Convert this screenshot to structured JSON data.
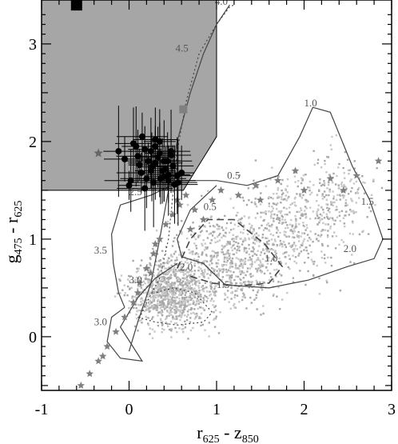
{
  "chart_data": {
    "type": "scatter",
    "title": "",
    "xlabel": {
      "main": "r",
      "sub1": "625",
      "mid": " - z",
      "sub2": "850"
    },
    "ylabel": {
      "main": "g",
      "sub1": "475",
      "mid": " - r",
      "sub2": "625"
    },
    "xlim": [
      -1,
      3
    ],
    "ylim": [
      -0.55,
      3.45
    ],
    "x_ticks": [
      -1,
      0,
      1,
      2,
      3
    ],
    "y_ticks": [
      0,
      1,
      2,
      3
    ],
    "grid": false,
    "shaded_region": {
      "color": "#a6a6a6",
      "vertices": [
        [
          -1,
          3.45
        ],
        [
          1.0,
          3.45
        ],
        [
          1.0,
          2.05
        ],
        [
          0.62,
          1.5
        ],
        [
          -1,
          1.5
        ]
      ]
    },
    "highlight_square": {
      "x": -0.6,
      "y": 3.4
    },
    "gray_square": {
      "x": 0.62,
      "y": 2.33
    },
    "galaxy_star": {
      "x": -0.35,
      "y": 1.88
    },
    "labeled_curves": [
      {
        "name": "solid-outer",
        "style": "solid",
        "points": [
          [
            -0.05,
            0.3
          ],
          [
            -0.12,
            0.45
          ],
          [
            -0.18,
            0.75
          ],
          [
            -0.2,
            1.05
          ],
          [
            -0.1,
            1.35
          ],
          [
            0.25,
            1.45
          ],
          [
            0.6,
            1.6
          ],
          [
            1.0,
            1.6
          ],
          [
            1.35,
            1.55
          ],
          [
            1.7,
            1.65
          ],
          [
            1.95,
            2.05
          ],
          [
            2.1,
            2.35
          ],
          [
            2.3,
            2.3
          ],
          [
            2.55,
            1.75
          ],
          [
            2.75,
            1.4
          ],
          [
            2.9,
            1.0
          ],
          [
            2.8,
            0.8
          ],
          [
            2.5,
            0.72
          ],
          [
            2.05,
            0.58
          ],
          [
            1.6,
            0.5
          ],
          [
            1.1,
            0.53
          ],
          [
            0.85,
            0.75
          ],
          [
            0.6,
            0.82
          ],
          [
            0.55,
            1.0
          ],
          [
            0.7,
            1.3
          ],
          [
            1.0,
            1.55
          ]
        ],
        "labels": [
          {
            "text": "1.0",
            "x": 2.0,
            "y": 2.36
          },
          {
            "text": "1.5",
            "x": 2.65,
            "y": 1.35
          },
          {
            "text": "2.0",
            "x": 2.45,
            "y": 0.87
          },
          {
            "text": "0.5",
            "x": 1.12,
            "y": 1.62
          },
          {
            "text": "1.5",
            "x": 1.0,
            "y": 0.5
          },
          {
            "text": "2.0",
            "x": 0.58,
            "y": 0.68
          }
        ]
      },
      {
        "name": "dashed-loop",
        "style": "dashed",
        "points": [
          [
            0.55,
            0.7
          ],
          [
            0.7,
            1.0
          ],
          [
            0.9,
            1.2
          ],
          [
            1.2,
            1.2
          ],
          [
            1.55,
            0.95
          ],
          [
            1.75,
            0.72
          ],
          [
            1.6,
            0.55
          ],
          [
            1.25,
            0.52
          ],
          [
            0.95,
            0.55
          ],
          [
            0.7,
            0.62
          ]
        ],
        "labels": [
          {
            "text": "1.0",
            "x": 1.55,
            "y": 0.77
          },
          {
            "text": "0.5",
            "x": 0.85,
            "y": 1.3
          }
        ]
      },
      {
        "name": "dotted-track",
        "style": "dotted",
        "points": [
          [
            0.1,
            0.15
          ],
          [
            0.2,
            0.35
          ],
          [
            0.35,
            0.6
          ],
          [
            0.45,
            1.0
          ],
          [
            0.5,
            1.45
          ],
          [
            0.55,
            1.9
          ],
          [
            0.65,
            2.4
          ],
          [
            0.8,
            2.9
          ],
          [
            1.0,
            3.2
          ],
          [
            1.15,
            3.38
          ],
          [
            1.2,
            3.4
          ]
        ],
        "labels": []
      },
      {
        "name": "solid-track",
        "style": "solid",
        "points": [
          [
            0.0,
            -0.15
          ],
          [
            0.1,
            0.15
          ],
          [
            0.25,
            0.55
          ],
          [
            0.35,
            1.0
          ],
          [
            0.45,
            1.5
          ],
          [
            0.55,
            2.0
          ],
          [
            0.7,
            2.5
          ],
          [
            0.85,
            2.9
          ],
          [
            1.0,
            3.2
          ],
          [
            1.15,
            3.4
          ]
        ],
        "labels": [
          {
            "text": "4.5",
            "x": 0.53,
            "y": 2.92
          },
          {
            "text": "4.0",
            "x": 0.98,
            "y": 3.4
          },
          {
            "text": "3.5",
            "x": -0.4,
            "y": 0.85
          },
          {
            "text": "3.0",
            "x": -0.4,
            "y": 0.12
          },
          {
            "text": "3.0",
            "x": 0.0,
            "y": 0.55
          },
          {
            "text": "2.5",
            "x": 0.0,
            "y": 1.45
          }
        ]
      },
      {
        "name": "solid-lower",
        "style": "solid",
        "points": [
          [
            -0.05,
            0.3
          ],
          [
            -0.2,
            0.2
          ],
          [
            -0.25,
            -0.05
          ],
          [
            -0.1,
            -0.22
          ],
          [
            0.15,
            -0.25
          ],
          [
            -0.1,
            0.1
          ],
          [
            0.1,
            0.4
          ],
          [
            0.3,
            0.6
          ],
          [
            0.55,
            0.75
          ]
        ],
        "labels": []
      },
      {
        "name": "dotted-inner",
        "style": "dotted",
        "points": [
          [
            0.1,
            0.2
          ],
          [
            0.3,
            0.15
          ],
          [
            0.55,
            0.12
          ],
          [
            0.85,
            0.15
          ],
          [
            0.95,
            0.25
          ],
          [
            0.75,
            0.45
          ],
          [
            0.5,
            0.5
          ],
          [
            0.3,
            0.45
          ]
        ],
        "labels": []
      }
    ],
    "series": [
      {
        "name": "black-points-with-errorbars",
        "marker": "filled-circle",
        "color": "#000000",
        "x": [
          0.0,
          0.18,
          0.3,
          0.4,
          0.25,
          0.1,
          0.45,
          0.35,
          0.5,
          0.2,
          0.55,
          0.3,
          0.15,
          0.38,
          0.48,
          0.22,
          0.6,
          0.05,
          0.28,
          0.42,
          0.33,
          0.52,
          0.12,
          0.4,
          0.25,
          0.18,
          0.35,
          0.45,
          0.3,
          -0.12,
          -0.05,
          0.02,
          0.08,
          0.48,
          0.36,
          0.26,
          0.56,
          0.14,
          0.44
        ],
        "y": [
          1.55,
          1.92,
          2.02,
          1.8,
          1.7,
          1.85,
          1.6,
          1.88,
          1.75,
          1.62,
          1.65,
          1.95,
          2.05,
          1.7,
          1.9,
          1.8,
          1.68,
          1.98,
          1.58,
          1.72,
          1.84,
          1.56,
          1.76,
          1.64,
          1.9,
          1.52,
          2.0,
          1.66,
          1.78,
          1.9,
          1.82,
          1.6,
          1.95,
          1.86,
          1.62,
          1.74,
          1.58,
          1.68,
          1.8
        ]
      },
      {
        "name": "gray-cloud",
        "marker": "small-dot",
        "color": "#bdbdbd"
      },
      {
        "name": "gray-stars",
        "marker": "star",
        "color": "#7f7f7f",
        "x": [
          -0.55,
          -0.45,
          -0.35,
          -0.25,
          -0.15,
          -0.05,
          0.05,
          0.12,
          0.2,
          0.28,
          0.35,
          0.42,
          0.5,
          0.58,
          0.65,
          0.75,
          0.85,
          0.95,
          1.05,
          1.25,
          1.45,
          1.7,
          2.0,
          2.3,
          2.6,
          2.85,
          -0.3,
          0.1,
          0.3,
          0.55,
          0.7,
          1.5,
          1.9,
          2.45,
          0.25
        ],
        "y": [
          -0.5,
          -0.38,
          -0.25,
          -0.1,
          0.05,
          0.2,
          0.35,
          0.55,
          0.7,
          0.85,
          1.0,
          1.15,
          1.25,
          1.35,
          1.45,
          1.3,
          1.2,
          1.4,
          1.5,
          1.45,
          1.55,
          1.6,
          1.5,
          1.62,
          1.65,
          1.8,
          -0.2,
          0.45,
          0.95,
          1.4,
          1.1,
          1.4,
          1.7,
          1.5,
          0.65
        ]
      }
    ]
  }
}
